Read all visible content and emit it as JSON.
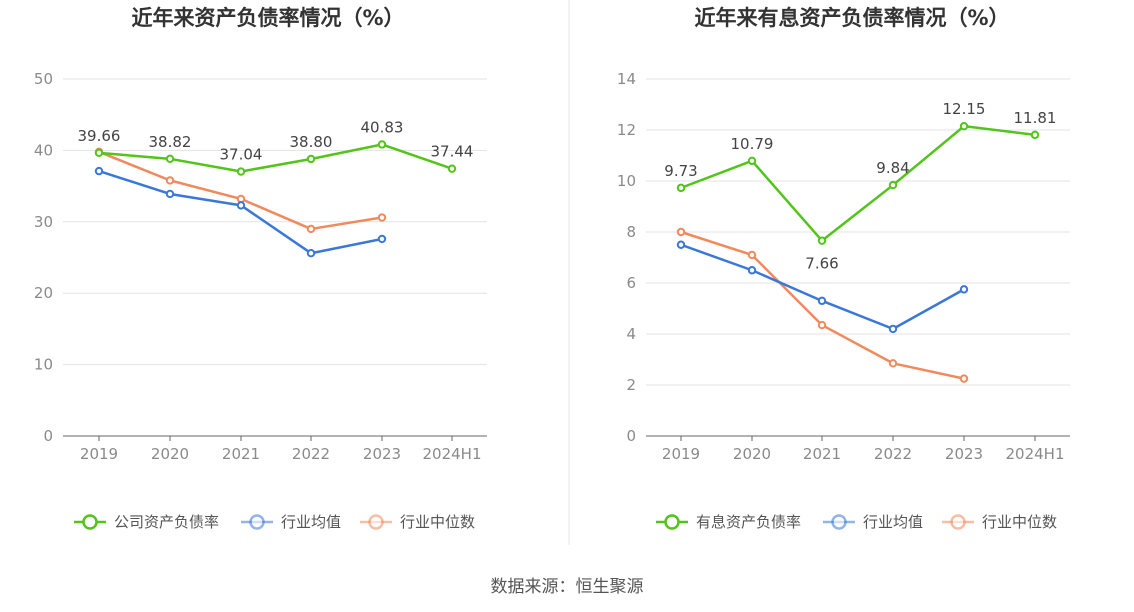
{
  "source_label": "数据来源：恒生聚源",
  "chart_data": [
    {
      "type": "line",
      "title": "近年来资产负债率情况（%）",
      "categories": [
        "2019",
        "2020",
        "2021",
        "2022",
        "2023",
        "2024H1"
      ],
      "ylim": [
        0,
        50
      ],
      "yticks": [
        0,
        10,
        20,
        30,
        40,
        50
      ],
      "grid": true,
      "legend_position": "bottom",
      "series": [
        {
          "name": "公司资产负债率",
          "color": "#52c41a",
          "values": [
            39.66,
            38.82,
            37.04,
            38.8,
            40.83,
            37.44
          ],
          "value_labels": [
            "39.66",
            "38.82",
            "37.04",
            "38.80",
            "40.83",
            "37.44"
          ],
          "show_labels": true
        },
        {
          "name": "行业均值",
          "color": "#3a78d8",
          "values": [
            37.1,
            33.9,
            32.3,
            25.6,
            27.6,
            null
          ],
          "show_labels": false
        },
        {
          "name": "行业中位数",
          "color": "#f08a5d",
          "values": [
            39.8,
            35.8,
            33.2,
            29.0,
            30.6,
            null
          ],
          "show_labels": false
        }
      ]
    },
    {
      "type": "line",
      "title": "近年来有息资产负债率情况（%）",
      "categories": [
        "2019",
        "2020",
        "2021",
        "2022",
        "2023",
        "2024H1"
      ],
      "ylim": [
        0,
        14
      ],
      "yticks": [
        0,
        2,
        4,
        6,
        8,
        10,
        12,
        14
      ],
      "grid": true,
      "legend_position": "bottom",
      "series": [
        {
          "name": "有息资产负债率",
          "color": "#52c41a",
          "values": [
            9.73,
            10.79,
            7.66,
            9.84,
            12.15,
            11.81
          ],
          "value_labels": [
            "9.73",
            "10.79",
            "7.66",
            "9.84",
            "12.15",
            "11.81"
          ],
          "show_labels": true
        },
        {
          "name": "行业均值",
          "color": "#3a78d8",
          "values": [
            7.5,
            6.5,
            5.3,
            4.2,
            5.75,
            null
          ],
          "show_labels": false
        },
        {
          "name": "行业中位数",
          "color": "#f08a5d",
          "values": [
            8.0,
            7.1,
            4.35,
            2.85,
            2.25,
            null
          ],
          "show_labels": false
        }
      ]
    }
  ]
}
